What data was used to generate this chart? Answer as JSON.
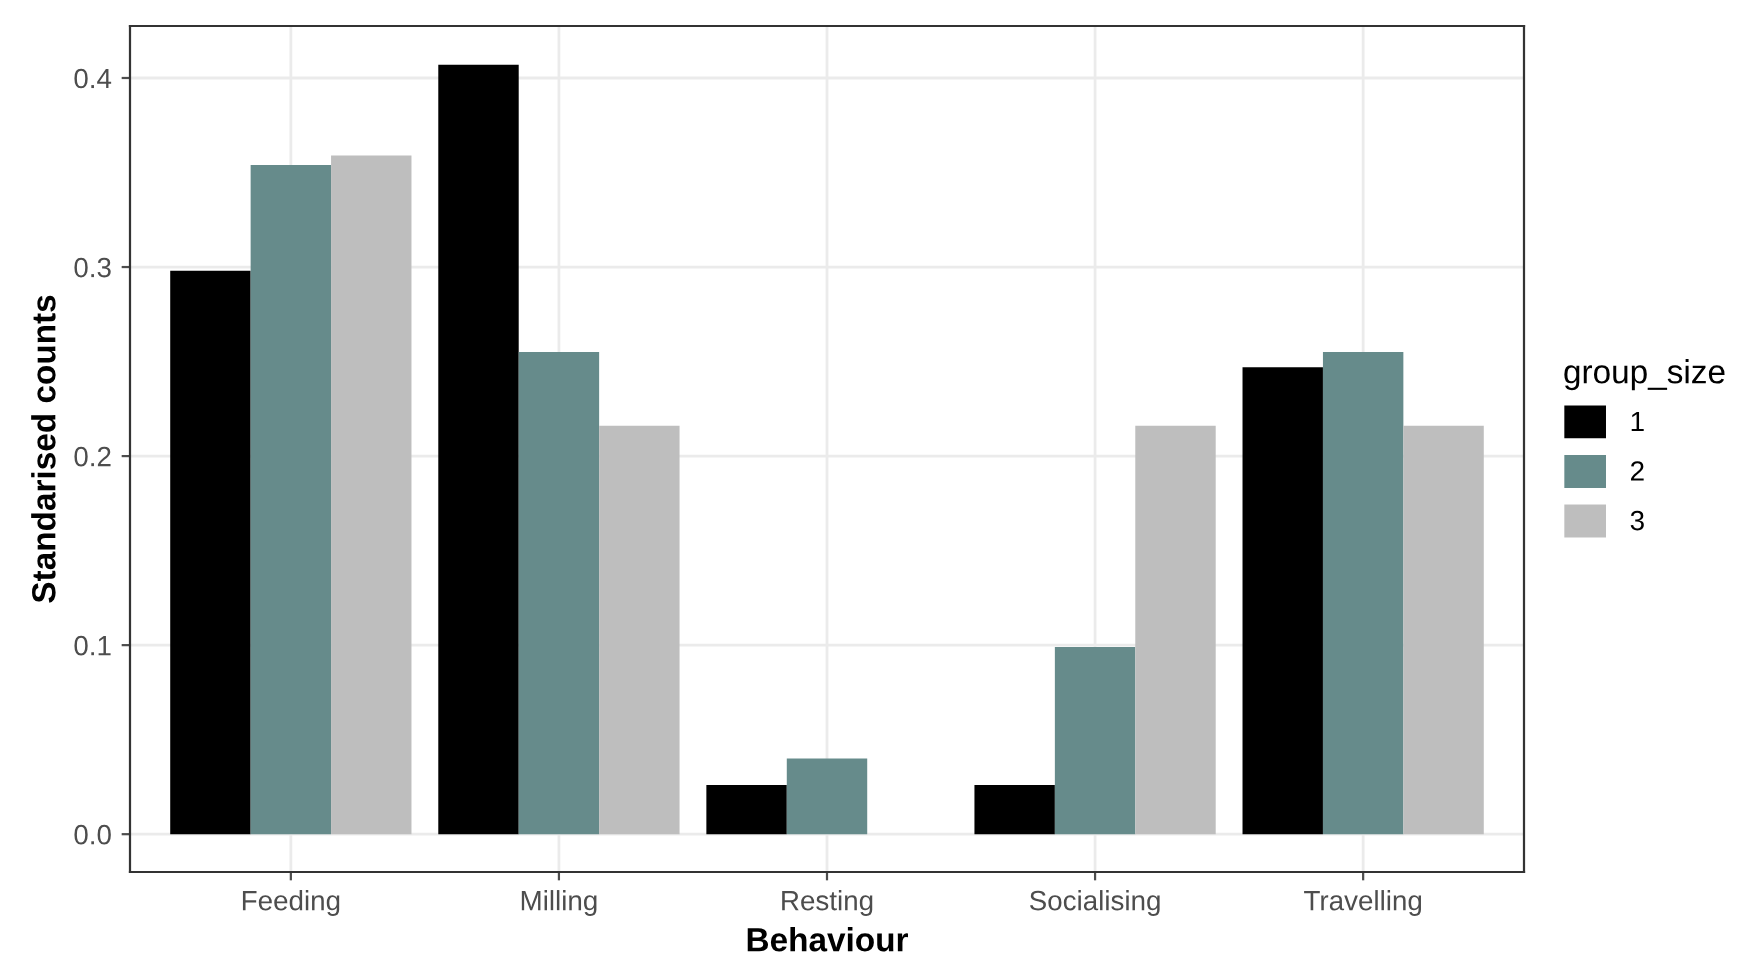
{
  "chart_data": {
    "type": "bar",
    "xlabel": "Behaviour",
    "ylabel": "Standarised counts",
    "legend_title": "group_size",
    "categories": [
      "Feeding",
      "Milling",
      "Resting",
      "Socialising",
      "Travelling"
    ],
    "series": [
      {
        "name": "1",
        "color": "#000000",
        "values": [
          0.298,
          0.407,
          0.026,
          0.026,
          0.247
        ]
      },
      {
        "name": "2",
        "color": "#668b8b",
        "values": [
          0.354,
          0.255,
          0.04,
          0.099,
          0.255
        ]
      },
      {
        "name": "3",
        "color": "#bebebe",
        "values": [
          0.359,
          0.216,
          0,
          0.216,
          0.216
        ]
      }
    ],
    "ylim": [
      -0.02,
      0.4275
    ],
    "yticks": [
      {
        "value": 0,
        "label": "0.0"
      },
      0.1,
      0.2,
      0.3,
      0.4
    ],
    "grid": true,
    "legend": "right"
  }
}
